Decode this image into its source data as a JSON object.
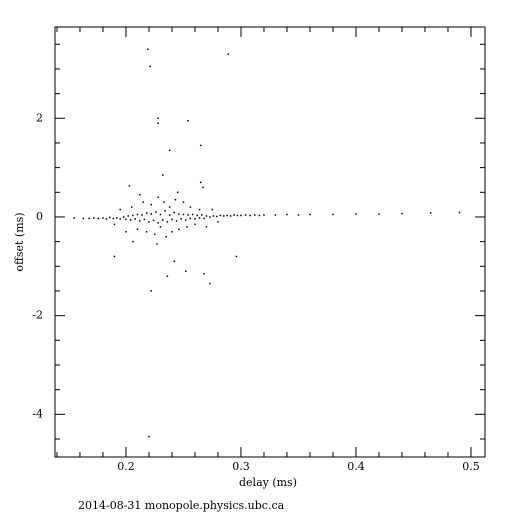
{
  "chart_data": {
    "type": "scatter",
    "x_label": "delay (ms)",
    "y_label": "offset (ms)",
    "footer": "2014-08-31 monopole.physics.ubc.ca",
    "color": "#000000",
    "xlim": [
      0.1383,
      0.5122
    ],
    "ylim": [
      -4.865,
      3.85
    ],
    "xticks": [
      0.2,
      0.3,
      0.4,
      0.5
    ],
    "yticks": [
      -4,
      -2,
      0,
      2
    ],
    "xminorticks": [
      0.14,
      0.16,
      0.18,
      0.22,
      0.24,
      0.26,
      0.28,
      0.32,
      0.34,
      0.36,
      0.38,
      0.42,
      0.44,
      0.46,
      0.48
    ],
    "yminorticks": [
      -4.5,
      -3.5,
      -3,
      -2.5,
      -1.5,
      -1,
      -0.5,
      0.5,
      1,
      1.5,
      2.5,
      3,
      3.5
    ],
    "x": [
      0.155,
      0.163,
      0.168,
      0.172,
      0.176,
      0.18,
      0.183,
      0.186,
      0.189,
      0.192,
      0.195,
      0.198,
      0.2,
      0.202,
      0.204,
      0.206,
      0.208,
      0.21,
      0.212,
      0.214,
      0.216,
      0.218,
      0.22,
      0.222,
      0.224,
      0.226,
      0.228,
      0.23,
      0.232,
      0.234,
      0.236,
      0.238,
      0.24,
      0.242,
      0.244,
      0.246,
      0.248,
      0.25,
      0.252,
      0.254,
      0.256,
      0.258,
      0.26,
      0.262,
      0.264,
      0.266,
      0.268,
      0.27,
      0.273,
      0.276,
      0.279,
      0.282,
      0.285,
      0.288,
      0.291,
      0.294,
      0.297,
      0.3,
      0.304,
      0.308,
      0.312,
      0.316,
      0.32,
      0.33,
      0.34,
      0.35,
      0.36,
      0.38,
      0.4,
      0.42,
      0.44,
      0.465,
      0.49,
      0.205,
      0.21,
      0.215,
      0.218,
      0.222,
      0.225,
      0.228,
      0.23,
      0.233,
      0.235,
      0.238,
      0.24,
      0.243,
      0.246,
      0.25,
      0.253,
      0.256,
      0.26,
      0.264,
      0.27,
      0.275,
      0.28,
      0.195,
      0.19,
      0.212,
      0.227,
      0.245,
      0.2,
      0.219,
      0.221,
      0.289,
      0.228,
      0.228,
      0.254,
      0.238,
      0.265,
      0.265,
      0.267,
      0.203,
      0.232,
      0.22,
      0.222,
      0.236,
      0.252,
      0.273,
      0.268,
      0.19,
      0.296,
      0.206,
      0.242
    ],
    "values": [
      -0.02,
      -0.03,
      -0.03,
      -0.02,
      -0.03,
      -0.02,
      -0.04,
      -0.01,
      -0.03,
      -0.02,
      -0.04,
      0.0,
      -0.05,
      0.02,
      -0.06,
      0.03,
      -0.04,
      0.05,
      -0.08,
      0.04,
      -0.05,
      0.08,
      -0.1,
      0.06,
      -0.07,
      0.1,
      -0.12,
      0.05,
      -0.06,
      0.12,
      -0.1,
      0.04,
      -0.05,
      0.09,
      -0.08,
      0.06,
      -0.04,
      0.05,
      -0.06,
      0.04,
      -0.03,
      0.05,
      -0.04,
      0.03,
      -0.02,
      0.04,
      -0.03,
      0.02,
      0.0,
      0.02,
      0.01,
      0.03,
      0.02,
      0.03,
      0.02,
      0.04,
      0.03,
      0.03,
      0.04,
      0.03,
      0.04,
      0.03,
      0.04,
      0.04,
      0.05,
      0.04,
      0.05,
      0.05,
      0.06,
      0.06,
      0.07,
      0.08,
      0.09,
      0.2,
      -0.25,
      0.3,
      -0.3,
      0.25,
      -0.35,
      0.4,
      -0.2,
      0.3,
      -0.4,
      0.2,
      -0.3,
      0.35,
      -0.25,
      0.3,
      -0.2,
      0.2,
      -0.15,
      0.15,
      -0.2,
      0.15,
      -0.1,
      0.15,
      -0.15,
      0.45,
      -0.55,
      0.5,
      -0.3,
      3.4,
      3.05,
      3.3,
      2.0,
      1.9,
      1.95,
      1.35,
      1.45,
      0.7,
      0.6,
      0.63,
      0.85,
      -4.45,
      -1.5,
      -1.2,
      -1.1,
      -1.35,
      -1.15,
      -0.8,
      -0.8,
      -0.5,
      -0.9
    ]
  }
}
